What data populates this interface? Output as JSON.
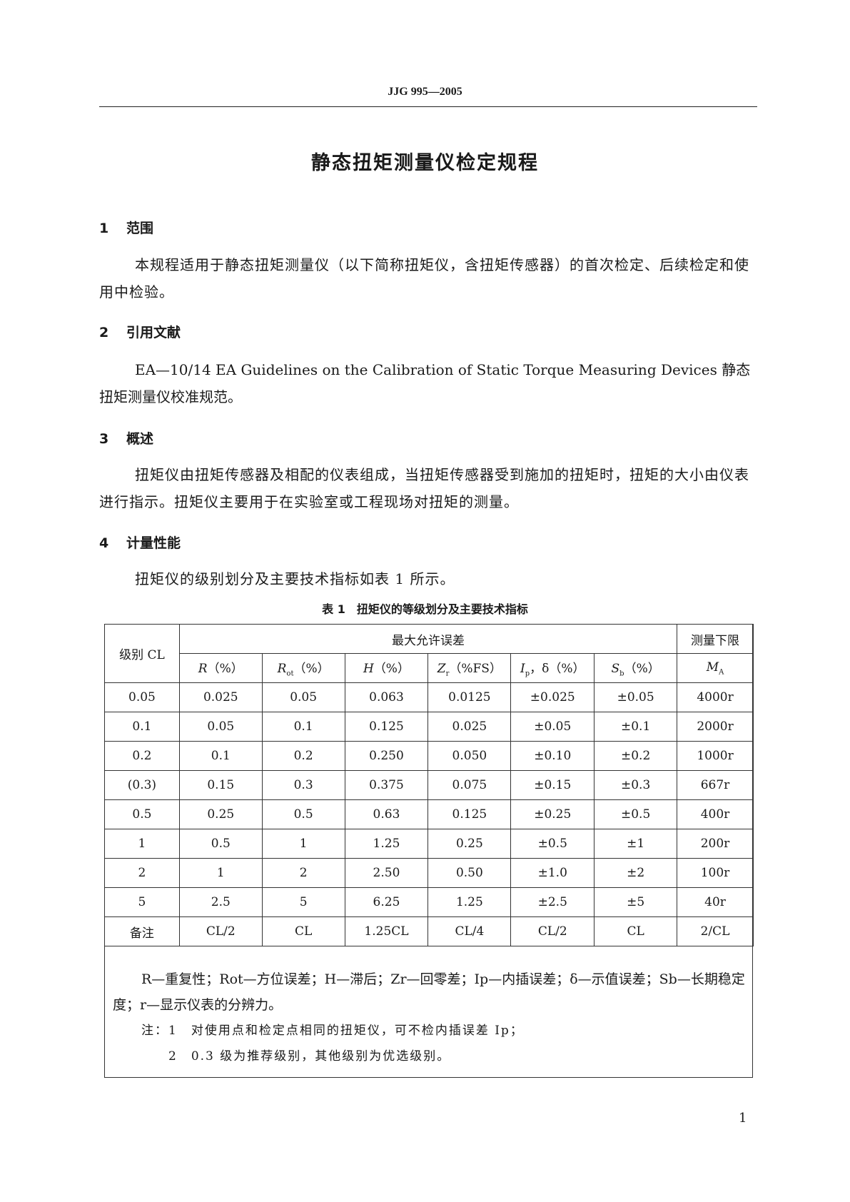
{
  "header": "JJG 995—2005",
  "title": "静态扭矩测量仪检定规程",
  "sections": [
    {
      "num": "1",
      "title": "范围",
      "text": "本规程适用于静态扭矩测量仪（以下简称扭矩仪，含扭矩传感器）的首次检定、后续检定和使用中检验。"
    },
    {
      "num": "2",
      "title": "引用文献",
      "text": "EA—10/14 EA Guidelines on the Calibration of Static Torque Measuring Devices 静态扭矩测量仪校准规范。"
    },
    {
      "num": "3",
      "title": "概述",
      "text": "扭矩仪由扭矩传感器及相配的仪表组成，当扭矩传感器受到施加的扭矩时，扭矩的大小由仪表进行指示。扭矩仪主要用于在实验室或工程现场对扭矩的测量。"
    },
    {
      "num": "4",
      "title": "计量性能",
      "text": "扭矩仪的级别划分及主要技术指标如表 1 所示。"
    }
  ],
  "table": {
    "caption": "表 1　扭矩仪的等级划分及主要技术指标",
    "col_class": "级别 CL",
    "group_header": "最大允许误差",
    "col_limit": "测量下限",
    "col_limit_sym": "M",
    "col_limit_sub": "A",
    "sub_headers": [
      {
        "sym": "R",
        "sub": "",
        "unit": "（%）"
      },
      {
        "sym": "R",
        "sub": "ot",
        "unit": "（%）"
      },
      {
        "sym": "H",
        "sub": "",
        "unit": "（%）"
      },
      {
        "sym": "Z",
        "sub": "r",
        "unit": "（%FS）"
      },
      {
        "sym": "I",
        "sub": "p",
        "unit": "，δ（%）"
      },
      {
        "sym": "S",
        "sub": "b",
        "unit": "（%）"
      }
    ],
    "rows": [
      [
        "0.05",
        "0.025",
        "0.05",
        "0.063",
        "0.0125",
        "±0.025",
        "±0.05",
        "4000r"
      ],
      [
        "0.1",
        "0.05",
        "0.1",
        "0.125",
        "0.025",
        "±0.05",
        "±0.1",
        "2000r"
      ],
      [
        "0.2",
        "0.1",
        "0.2",
        "0.250",
        "0.050",
        "±0.10",
        "±0.2",
        "1000r"
      ],
      [
        "(0.3)",
        "0.15",
        "0.3",
        "0.375",
        "0.075",
        "±0.15",
        "±0.3",
        "667r"
      ],
      [
        "0.5",
        "0.25",
        "0.5",
        "0.63",
        "0.125",
        "±0.25",
        "±0.5",
        "400r"
      ],
      [
        "1",
        "0.5",
        "1",
        "1.25",
        "0.25",
        "±0.5",
        "±1",
        "200r"
      ],
      [
        "2",
        "1",
        "2",
        "2.50",
        "0.50",
        "±1.0",
        "±2",
        "100r"
      ],
      [
        "5",
        "2.5",
        "5",
        "6.25",
        "1.25",
        "±2.5",
        "±5",
        "40r"
      ],
      [
        "备注",
        "CL/2",
        "CL",
        "1.25CL",
        "CL/4",
        "CL/2",
        "CL",
        "2/CL"
      ]
    ],
    "legend": "R—重复性；Rot—方位误差；H—滞后；Zr—回零差；Ip—内插误差；δ—示值误差；Sb—长期稳定度；r—显示仪表的分辨力。",
    "note1": "注：1　对使用点和检定点相同的扭矩仪，可不检内插误差 Ip；",
    "note2": "2　0.3 级为推荐级别，其他级别为优选级别。"
  },
  "page_number": "1"
}
